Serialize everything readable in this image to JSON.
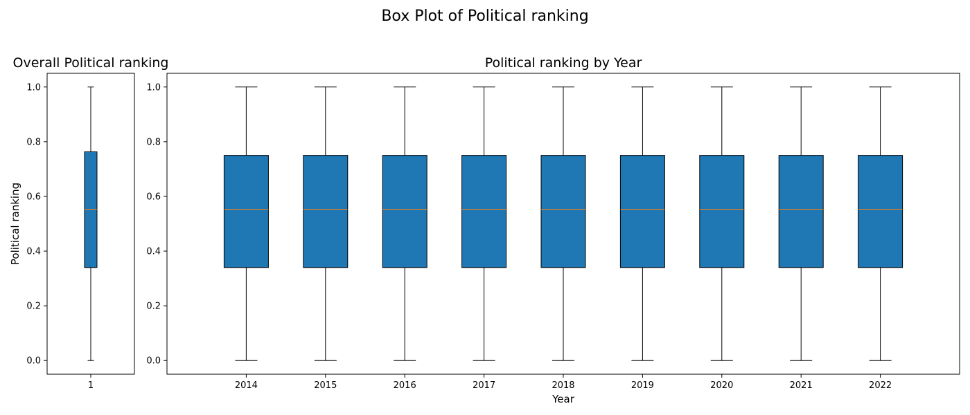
{
  "chart_data": {
    "type": "box",
    "title": "Box Plot of Political ranking",
    "colors": {
      "box_fill": "#1f77b4",
      "median": "#ff7f0e",
      "stroke": "#000000"
    },
    "panels": [
      {
        "title": "Overall Political ranking",
        "xlabel": "",
        "ylabel": "Political ranking",
        "ylim": [
          -0.05,
          1.05
        ],
        "yticks": [
          "0.0",
          "0.2",
          "0.4",
          "0.6",
          "0.8",
          "1.0"
        ],
        "ytick_values": [
          0,
          0.2,
          0.4,
          0.6,
          0.8,
          1.0
        ],
        "categories": [
          "1"
        ],
        "boxes": [
          {
            "whisker_low": 0.0,
            "q1": 0.34,
            "median": 0.553,
            "q3": 0.763,
            "whisker_high": 1.0
          }
        ]
      },
      {
        "title": "Political ranking by Year",
        "xlabel": "Year",
        "ylabel": "",
        "ylim": [
          -0.05,
          1.05
        ],
        "yticks": [
          "0.0",
          "0.2",
          "0.4",
          "0.6",
          "0.8",
          "1.0"
        ],
        "ytick_values": [
          0,
          0.2,
          0.4,
          0.6,
          0.8,
          1.0
        ],
        "categories": [
          "2014",
          "2015",
          "2016",
          "2017",
          "2018",
          "2019",
          "2020",
          "2021",
          "2022"
        ],
        "boxes": [
          {
            "whisker_low": 0.0,
            "q1": 0.34,
            "median": 0.553,
            "q3": 0.75,
            "whisker_high": 1.0
          },
          {
            "whisker_low": 0.0,
            "q1": 0.34,
            "median": 0.553,
            "q3": 0.75,
            "whisker_high": 1.0
          },
          {
            "whisker_low": 0.0,
            "q1": 0.34,
            "median": 0.553,
            "q3": 0.75,
            "whisker_high": 1.0
          },
          {
            "whisker_low": 0.0,
            "q1": 0.34,
            "median": 0.553,
            "q3": 0.75,
            "whisker_high": 1.0
          },
          {
            "whisker_low": 0.0,
            "q1": 0.34,
            "median": 0.553,
            "q3": 0.75,
            "whisker_high": 1.0
          },
          {
            "whisker_low": 0.0,
            "q1": 0.34,
            "median": 0.553,
            "q3": 0.75,
            "whisker_high": 1.0
          },
          {
            "whisker_low": 0.0,
            "q1": 0.34,
            "median": 0.553,
            "q3": 0.75,
            "whisker_high": 1.0
          },
          {
            "whisker_low": 0.0,
            "q1": 0.34,
            "median": 0.553,
            "q3": 0.75,
            "whisker_high": 1.0
          },
          {
            "whisker_low": 0.0,
            "q1": 0.34,
            "median": 0.553,
            "q3": 0.75,
            "whisker_high": 1.0
          }
        ]
      }
    ]
  }
}
